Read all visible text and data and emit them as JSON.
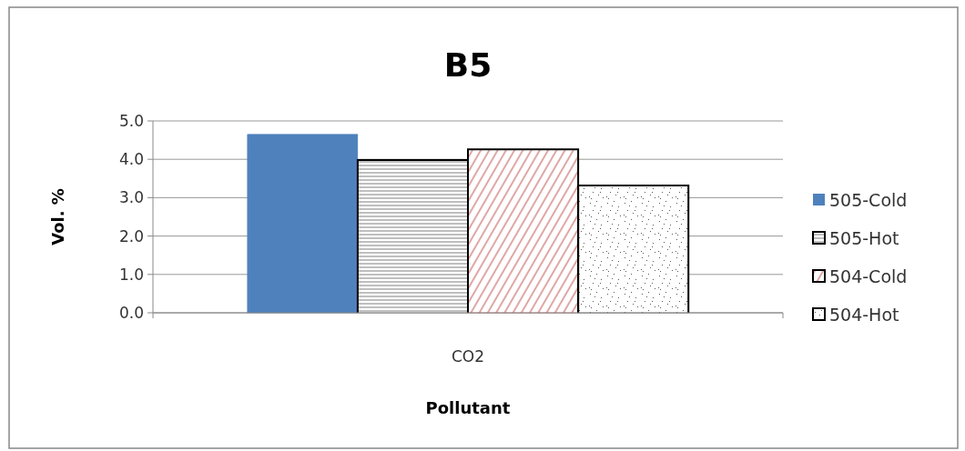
{
  "chart_data": {
    "type": "bar",
    "title": "B5",
    "xlabel": "Pollutant",
    "ylabel": "Vol. %",
    "categories": [
      "CO2"
    ],
    "series": [
      {
        "name": "505-Cold",
        "color": "#4f81bd",
        "values": [
          4.65
        ]
      },
      {
        "name": "505-Hot",
        "color": "#808080",
        "values": [
          3.98
        ]
      },
      {
        "name": "504-Cold",
        "color": "#c0504d",
        "values": [
          4.26
        ]
      },
      {
        "name": "504-Hot",
        "color": "#595959",
        "values": [
          3.32
        ]
      }
    ],
    "ylim": [
      0,
      5
    ],
    "yticks": [
      {
        "value": 0,
        "label": "0.0"
      },
      {
        "value": 1,
        "label": "1.0"
      },
      {
        "value": 2,
        "label": "2.0"
      },
      {
        "value": 3,
        "label": "3.0"
      },
      {
        "value": 4,
        "label": "4.0"
      },
      {
        "value": 5,
        "label": "5.0"
      }
    ],
    "grid": "y",
    "legend": "right"
  }
}
